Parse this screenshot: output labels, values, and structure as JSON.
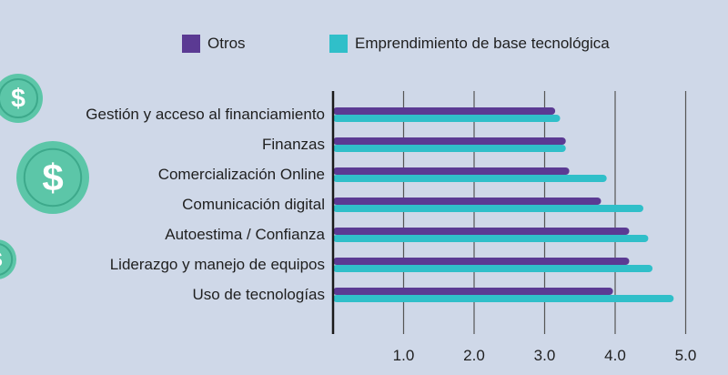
{
  "colors": {
    "background": "#cfd8e8",
    "series_otros": "#5b3a93",
    "series_ebt": "#30bfc9",
    "coin": "#5cc6a8",
    "coin_dark": "#3da98b",
    "axis": "#1a1a1a",
    "grid": "#555555"
  },
  "decorations": {
    "coins": [
      {
        "icon": "dollar-coin-icon",
        "symbol": "$"
      },
      {
        "icon": "dollar-coin-icon",
        "symbol": "$"
      },
      {
        "icon": "dollar-coin-icon",
        "symbol": "$"
      }
    ]
  },
  "chart_data": {
    "type": "bar",
    "orientation": "horizontal",
    "categories": [
      "Gestión y acceso al financiamiento",
      "Finanzas",
      "Comercialización Online",
      "Comunicación digital",
      "Autoestima / Confianza",
      "Liderazgo y manejo de equipos",
      "Uso de tecnologías"
    ],
    "series": [
      {
        "name": "Otros",
        "values": [
          3.15,
          3.3,
          3.35,
          3.8,
          4.2,
          4.2,
          3.97
        ]
      },
      {
        "name": "Emprendimiento de base tecnológica",
        "values": [
          3.22,
          3.3,
          3.88,
          4.4,
          4.47,
          4.53,
          4.83
        ]
      }
    ],
    "xlim": [
      0,
      5
    ],
    "xticks": [
      "1.0",
      "2.0",
      "3.0",
      "4.0",
      "5.0"
    ],
    "grid": "vertical",
    "legend": "top"
  }
}
